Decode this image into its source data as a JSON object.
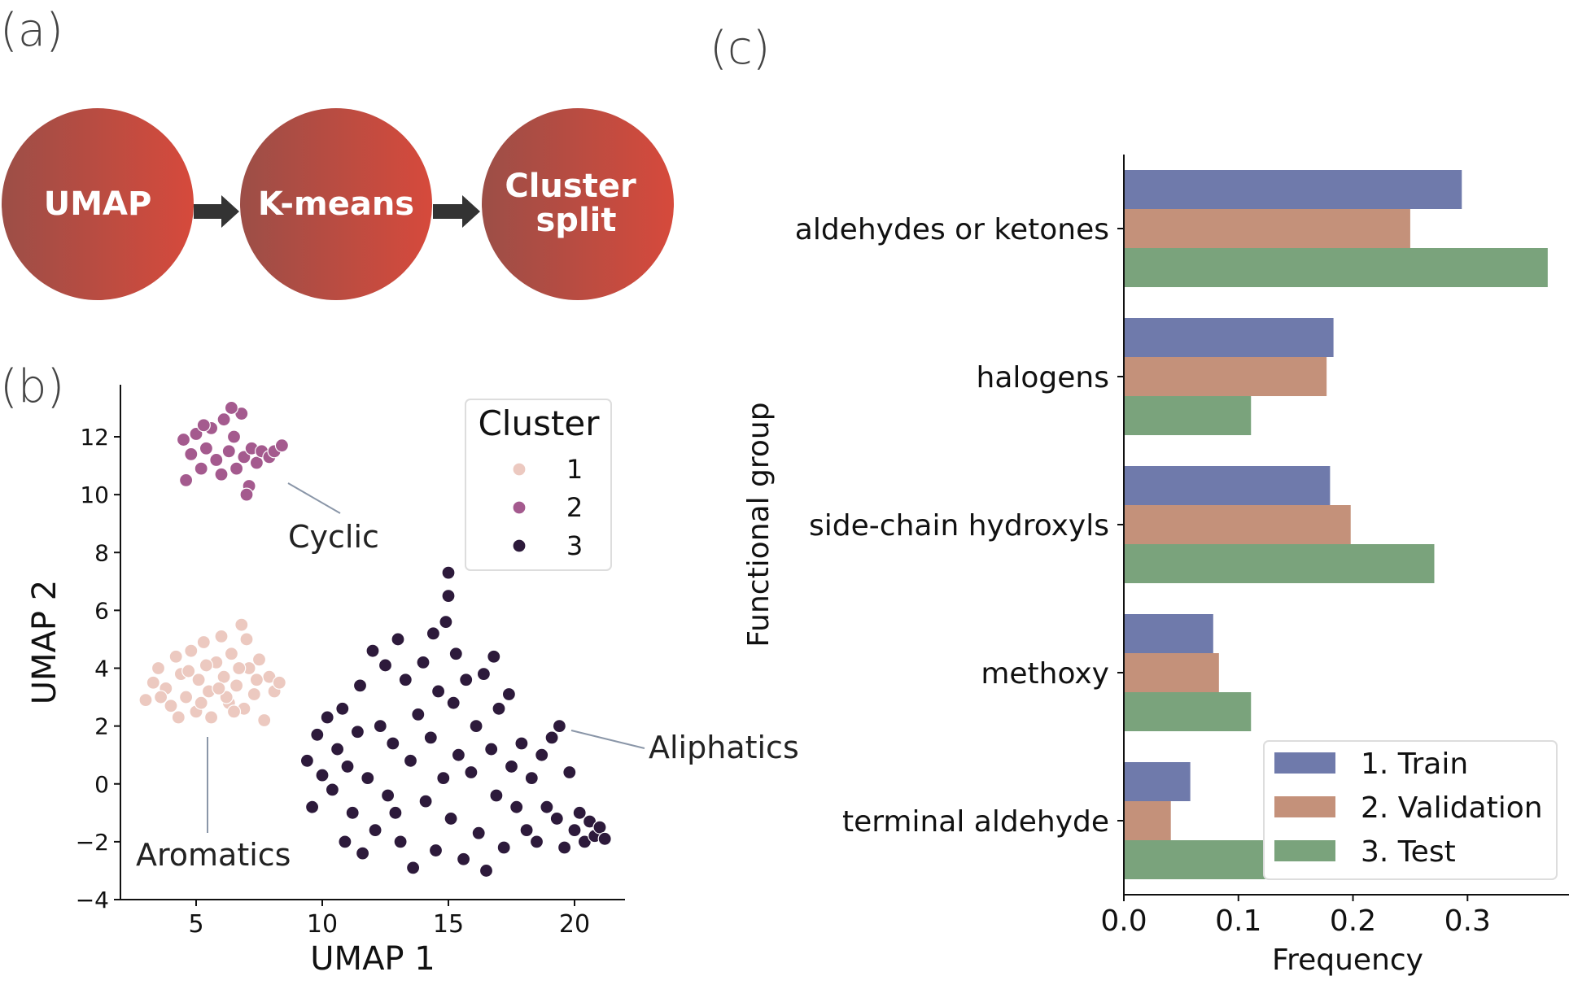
{
  "panels": {
    "a": {
      "letter": "(a)",
      "steps": [
        "UMAP",
        "K-means",
        "Cluster split"
      ],
      "circle_color_left": "#9c4e47",
      "circle_color_right": "#d64a3c",
      "arrow_color": "#333333"
    },
    "b": {
      "letter": "(b)"
    },
    "c": {
      "letter": "(c)"
    }
  },
  "chart_data": [
    {
      "panel": "b",
      "type": "scatter",
      "xlabel": "UMAP 1",
      "ylabel": "UMAP 2",
      "xlim": [
        2.0,
        22.0
      ],
      "ylim": [
        -4.0,
        13.8
      ],
      "xticks": [
        5,
        10,
        15,
        20
      ],
      "yticks": [
        -4,
        -2,
        0,
        2,
        4,
        6,
        8,
        10,
        12
      ],
      "ytick_labels": [
        "−4",
        "−2",
        "0",
        "2",
        "4",
        "6",
        "8",
        "10",
        "12"
      ],
      "grid": false,
      "legend": {
        "title": "Cluster",
        "placement": "top-right"
      },
      "series": [
        {
          "name": "1",
          "color": "#ecc9c0",
          "points": [
            [
              3.0,
              2.9
            ],
            [
              3.3,
              3.5
            ],
            [
              3.5,
              4.0
            ],
            [
              3.8,
              3.3
            ],
            [
              4.0,
              2.7
            ],
            [
              4.2,
              4.4
            ],
            [
              4.4,
              3.8
            ],
            [
              4.6,
              3.0
            ],
            [
              4.8,
              4.6
            ],
            [
              5.0,
              2.5
            ],
            [
              5.1,
              3.6
            ],
            [
              5.3,
              4.9
            ],
            [
              5.5,
              3.2
            ],
            [
              5.6,
              2.3
            ],
            [
              5.8,
              4.2
            ],
            [
              6.0,
              5.1
            ],
            [
              6.1,
              3.7
            ],
            [
              6.3,
              2.8
            ],
            [
              6.4,
              4.5
            ],
            [
              6.6,
              3.4
            ],
            [
              6.8,
              5.5
            ],
            [
              6.9,
              2.6
            ],
            [
              7.1,
              4.0
            ],
            [
              7.3,
              3.1
            ],
            [
              7.5,
              4.3
            ],
            [
              7.7,
              2.2
            ],
            [
              7.9,
              3.7
            ],
            [
              8.1,
              3.2
            ],
            [
              8.3,
              3.5
            ],
            [
              4.3,
              2.3
            ],
            [
              5.2,
              2.8
            ],
            [
              6.2,
              3.0
            ],
            [
              4.7,
              3.9
            ],
            [
              5.9,
              3.3
            ],
            [
              6.7,
              4.0
            ],
            [
              7.0,
              5.0
            ],
            [
              3.6,
              3.0
            ],
            [
              5.4,
              4.1
            ],
            [
              6.5,
              2.5
            ],
            [
              7.4,
              3.6
            ]
          ]
        },
        {
          "name": "2",
          "color": "#a45a8e",
          "points": [
            [
              4.5,
              11.9
            ],
            [
              4.8,
              11.4
            ],
            [
              5.0,
              12.1
            ],
            [
              5.2,
              10.9
            ],
            [
              5.4,
              11.6
            ],
            [
              5.6,
              12.3
            ],
            [
              5.8,
              11.2
            ],
            [
              6.0,
              10.7
            ],
            [
              6.1,
              12.6
            ],
            [
              6.3,
              11.5
            ],
            [
              6.5,
              12.0
            ],
            [
              6.6,
              10.9
            ],
            [
              6.8,
              12.8
            ],
            [
              6.9,
              11.3
            ],
            [
              7.1,
              10.3
            ],
            [
              7.2,
              11.6
            ],
            [
              7.4,
              11.1
            ],
            [
              7.6,
              11.5
            ],
            [
              7.9,
              11.3
            ],
            [
              8.1,
              11.5
            ],
            [
              8.4,
              11.7
            ],
            [
              4.6,
              10.5
            ],
            [
              5.3,
              12.4
            ],
            [
              6.4,
              13.0
            ],
            [
              7.0,
              10.0
            ]
          ]
        },
        {
          "name": "3",
          "color": "#2d1a3b",
          "points": [
            [
              9.4,
              0.8
            ],
            [
              9.6,
              -0.8
            ],
            [
              9.8,
              1.7
            ],
            [
              10.0,
              0.3
            ],
            [
              10.2,
              2.3
            ],
            [
              10.4,
              -0.2
            ],
            [
              10.6,
              1.2
            ],
            [
              10.8,
              2.6
            ],
            [
              11.0,
              0.6
            ],
            [
              11.2,
              -1.0
            ],
            [
              11.4,
              1.8
            ],
            [
              11.6,
              -2.4
            ],
            [
              11.8,
              0.2
            ],
            [
              12.0,
              4.6
            ],
            [
              12.1,
              -1.6
            ],
            [
              12.3,
              2.0
            ],
            [
              12.5,
              4.1
            ],
            [
              12.6,
              -0.4
            ],
            [
              12.8,
              1.4
            ],
            [
              13.0,
              5.0
            ],
            [
              13.1,
              -2.0
            ],
            [
              13.3,
              3.6
            ],
            [
              13.5,
              0.8
            ],
            [
              13.6,
              -2.9
            ],
            [
              13.8,
              2.4
            ],
            [
              14.0,
              4.2
            ],
            [
              14.1,
              -0.6
            ],
            [
              14.3,
              1.6
            ],
            [
              14.5,
              -2.3
            ],
            [
              14.6,
              3.2
            ],
            [
              14.8,
              0.2
            ],
            [
              14.9,
              5.6
            ],
            [
              15.0,
              7.3
            ],
            [
              15.0,
              6.5
            ],
            [
              15.1,
              -1.2
            ],
            [
              15.2,
              2.8
            ],
            [
              15.3,
              4.5
            ],
            [
              15.4,
              1.0
            ],
            [
              15.6,
              -2.6
            ],
            [
              15.7,
              3.6
            ],
            [
              15.9,
              0.4
            ],
            [
              16.1,
              2.0
            ],
            [
              16.2,
              -1.7
            ],
            [
              16.4,
              3.8
            ],
            [
              16.5,
              -3.0
            ],
            [
              16.7,
              1.2
            ],
            [
              16.9,
              -0.4
            ],
            [
              17.0,
              2.6
            ],
            [
              17.2,
              -2.2
            ],
            [
              17.4,
              3.1
            ],
            [
              17.5,
              0.6
            ],
            [
              17.7,
              -0.8
            ],
            [
              17.9,
              1.4
            ],
            [
              18.1,
              -1.6
            ],
            [
              18.3,
              0.2
            ],
            [
              18.5,
              -2.0
            ],
            [
              18.7,
              1.0
            ],
            [
              18.9,
              -0.8
            ],
            [
              19.1,
              1.6
            ],
            [
              19.3,
              -1.2
            ],
            [
              19.4,
              2.0
            ],
            [
              19.6,
              -2.2
            ],
            [
              19.8,
              0.4
            ],
            [
              20.0,
              -1.6
            ],
            [
              20.2,
              -1.0
            ],
            [
              20.4,
              -2.0
            ],
            [
              20.6,
              -1.3
            ],
            [
              20.8,
              -1.8
            ],
            [
              21.0,
              -1.5
            ],
            [
              21.2,
              -1.9
            ],
            [
              10.9,
              -2.0
            ],
            [
              12.9,
              -1.0
            ],
            [
              14.4,
              5.2
            ],
            [
              16.8,
              4.4
            ],
            [
              11.5,
              3.4
            ]
          ]
        }
      ],
      "annotations": [
        {
          "text": "Cyclic",
          "at": [
            8.5,
            11.4
          ]
        },
        {
          "text": "Aromatics",
          "at": [
            5.4,
            1.6
          ]
        },
        {
          "text": "Aliphatics",
          "at": [
            20.0,
            1.8
          ]
        }
      ]
    },
    {
      "panel": "c",
      "type": "bar",
      "orientation": "horizontal",
      "categories": [
        "aldehydes or ketones",
        "halogens",
        "side-chain hydroxyls",
        "methoxy",
        "terminal aldehyde"
      ],
      "series": [
        {
          "name": "1. Train",
          "color": "#6f7aab",
          "values": [
            0.295,
            0.183,
            0.18,
            0.078,
            0.058
          ]
        },
        {
          "name": "2. Validation",
          "color": "#c4917a",
          "values": [
            0.25,
            0.177,
            0.198,
            0.083,
            0.041
          ]
        },
        {
          "name": "3. Test",
          "color": "#7aa37c",
          "values": [
            0.37,
            0.111,
            0.271,
            0.111,
            0.14
          ]
        }
      ],
      "xlabel": "Frequency",
      "ylabel": "Functional group",
      "xlim": [
        0.0,
        0.39
      ],
      "xticks": [
        0.0,
        0.1,
        0.2,
        0.3
      ],
      "xtick_labels": [
        "0.0",
        "0.1",
        "0.2",
        "0.3"
      ],
      "grid": false,
      "legend": {
        "placement": "bottom-right"
      }
    }
  ]
}
